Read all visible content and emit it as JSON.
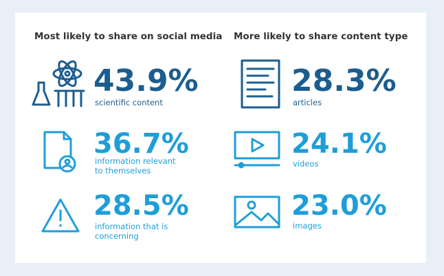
{
  "columns": [
    {
      "heading": "Most likely to share on social media",
      "items": [
        {
          "value": "43.9%",
          "label": [
            "scientific content"
          ]
        },
        {
          "value": "36.7%",
          "label": [
            "information relevant",
            "to themselves"
          ]
        },
        {
          "value": "28.5%",
          "label": [
            "information that is",
            "concerning"
          ]
        }
      ]
    },
    {
      "heading": "More likely to share content type",
      "items": [
        {
          "value": "28.3%",
          "label": [
            "articles"
          ]
        },
        {
          "value": "24.1%",
          "label": [
            "videos"
          ]
        },
        {
          "value": "23.0%",
          "label": [
            "images"
          ]
        }
      ]
    }
  ]
}
